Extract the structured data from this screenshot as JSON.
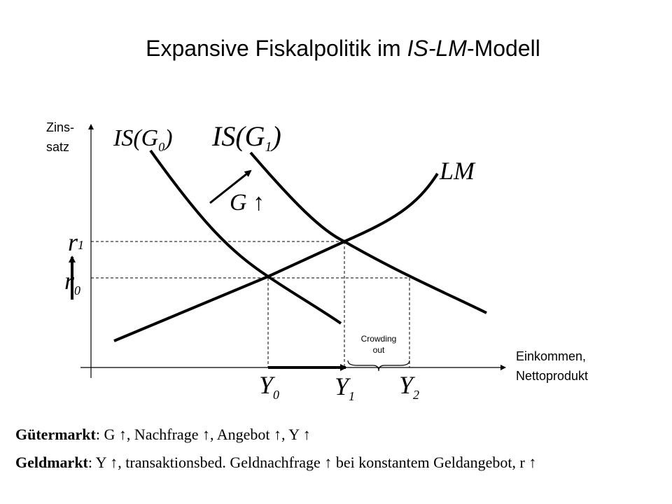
{
  "title": {
    "before": "Expansive Fiskalpolitik im ",
    "italic": "IS-LM",
    "after": "-Modell"
  },
  "axes": {
    "y_label": [
      "Zins-",
      "satz"
    ],
    "x_label": [
      "Einkommen,",
      "Nettoprodukt"
    ]
  },
  "curves": [
    {
      "base": "IS(G",
      "sub": "0",
      "close": ")"
    },
    {
      "base": "IS(G",
      "sub": "1",
      "close": ")"
    },
    {
      "base": "LM"
    }
  ],
  "shift_label": "G ↑",
  "levels": {
    "r": [
      {
        "base": "r",
        "sub": "1"
      },
      {
        "base": "r",
        "sub": "0"
      }
    ],
    "y": [
      {
        "base": "Y",
        "sub": "0"
      },
      {
        "base": "Y",
        "sub": "1"
      },
      {
        "base": "Y",
        "sub": "2"
      }
    ]
  },
  "crowding_out": [
    "Crowding",
    "out"
  ],
  "notes": [
    {
      "lead": "Gütermarkt",
      "rest": ": G ↑,  Nachfrage ↑,  Angebot ↑, Y ↑"
    },
    {
      "lead": "Geldmarkt",
      "rest": ": Y ↑,  transaktionsbed. Geldnachfrage ↑  bei konstantem Geldangebot,  r ↑"
    }
  ]
}
